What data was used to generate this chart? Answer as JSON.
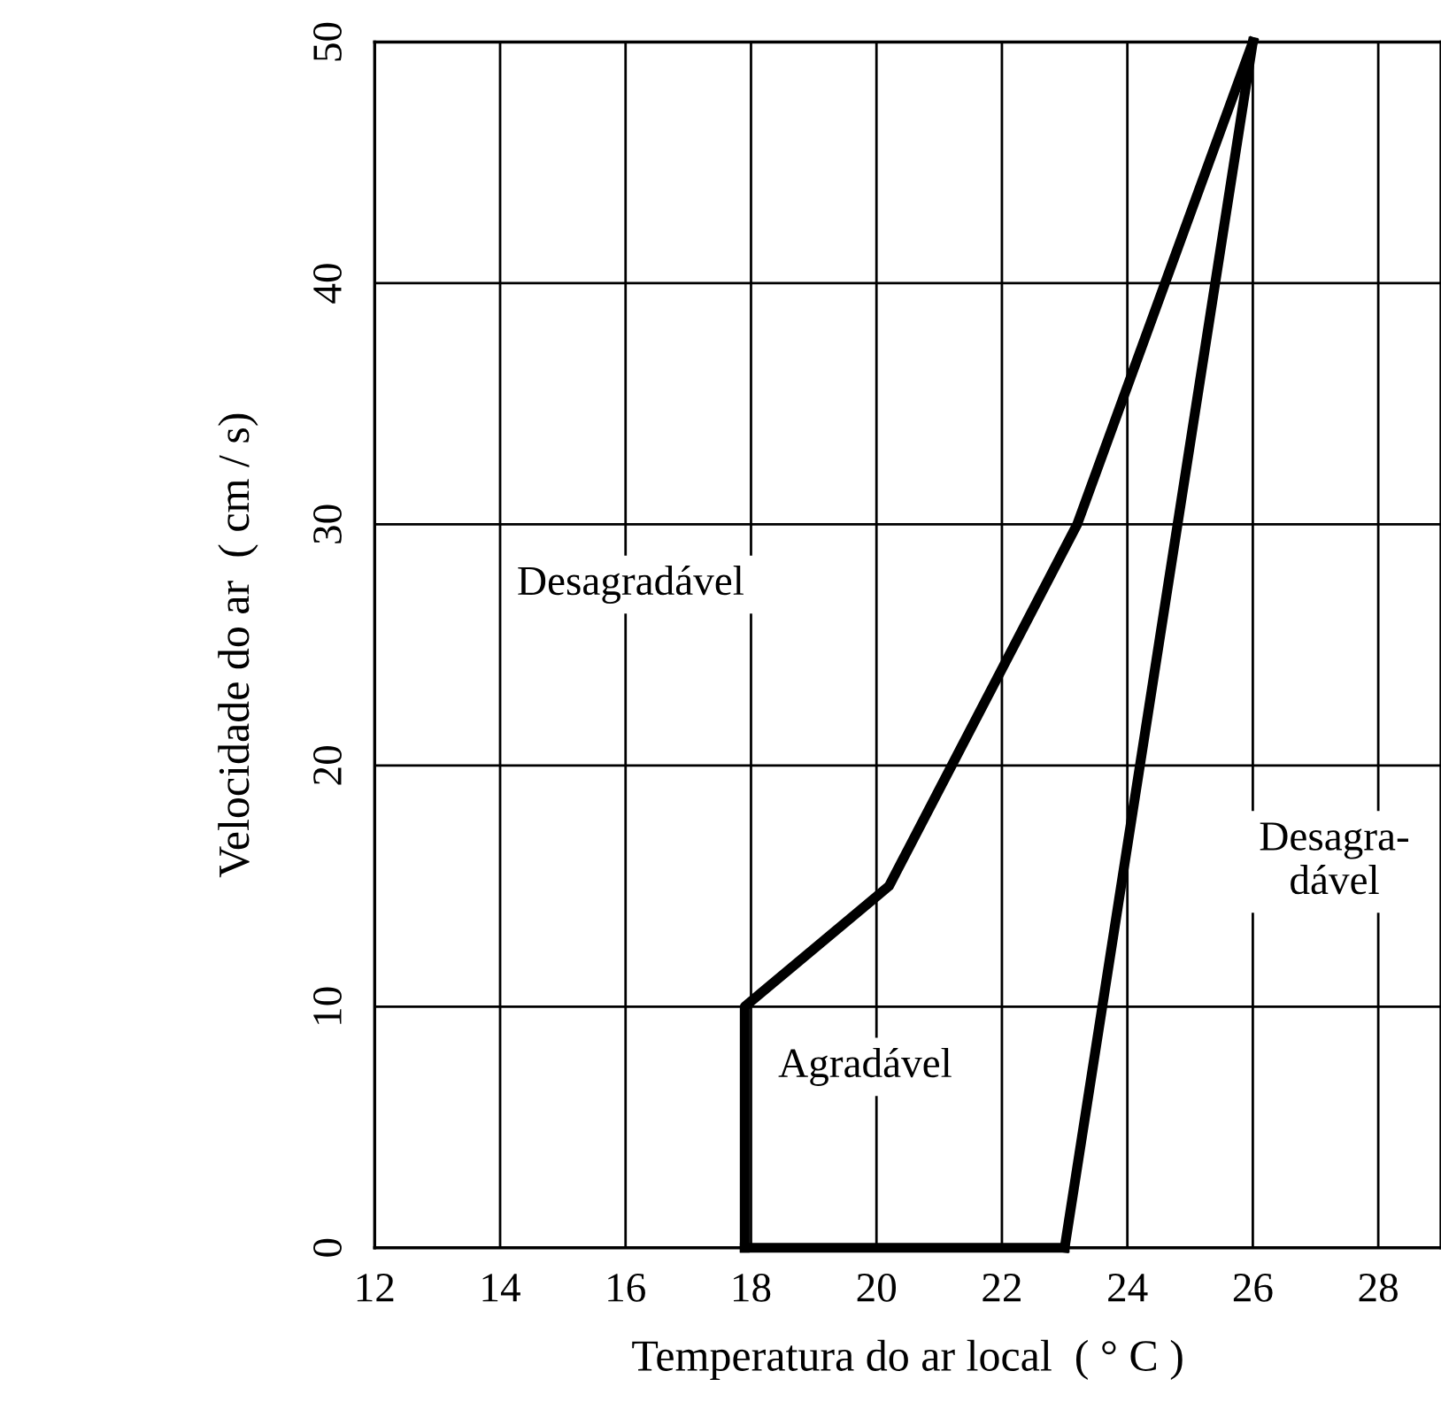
{
  "chart_data": {
    "type": "line",
    "xlabel": "Temperatura do ar local  ( ° C )",
    "ylabel": "Velocidade do ar  ( cm / s)",
    "series": [
      {
        "x": [
          17.9,
          17.9,
          20.2,
          21.2,
          23.2,
          26
        ],
        "values": [
          0,
          10,
          15,
          20,
          30,
          50
        ],
        "color": "#000000"
      },
      {
        "x": [
          23.0,
          26
        ],
        "values": [
          0,
          50
        ],
        "color": "#000000"
      },
      {
        "x": [
          17.9,
          23.0
        ],
        "values": [
          0,
          0
        ],
        "color": "#000000"
      }
    ],
    "xlim": [
      12,
      29
    ],
    "xticks": [
      12,
      14,
      16,
      18,
      20,
      22,
      24,
      26,
      28
    ],
    "ylim": [
      0,
      50
    ],
    "yticks": [
      0,
      10,
      20,
      30,
      40,
      50
    ],
    "grid": true,
    "marker": "none",
    "line_style": "solid",
    "annotations": [
      "Desagradável",
      "Agradável",
      "Desagra-\ndável"
    ]
  }
}
